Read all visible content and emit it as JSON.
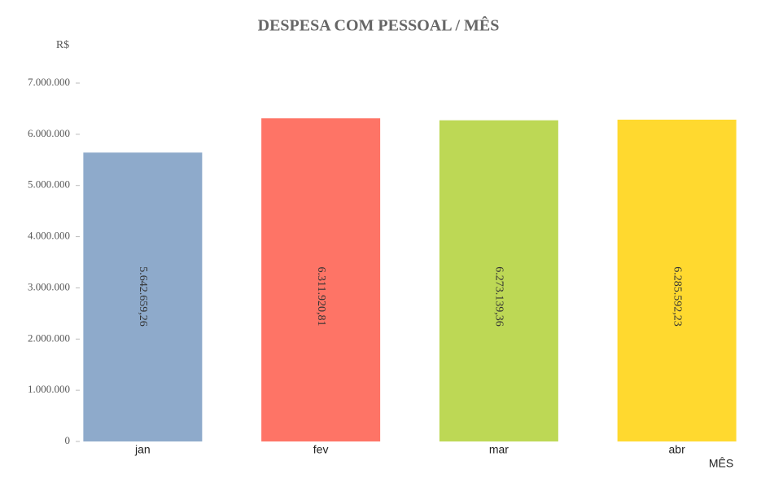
{
  "chart_data": {
    "type": "bar",
    "title": "DESPESA COM PESSOAL / MÊS",
    "y_label": "R$",
    "x_label": "MÊS",
    "categories": [
      "jan",
      "fev",
      "mar",
      "abr"
    ],
    "values": [
      5642659.26,
      6311920.81,
      6273139.36,
      6285592.23
    ],
    "value_labels": [
      "5.642.659,26",
      "6.311.920,81",
      "6.273.139,36",
      "6.285.592,23"
    ],
    "colors": [
      "#8eaacb",
      "#fe7466",
      "#bdd855",
      "#ffd92f"
    ],
    "ylim": [
      0,
      7000000
    ],
    "yticks": [
      0,
      {
        "value": 1000000,
        "label": "1.000.000"
      },
      {
        "value": 2000000,
        "label": "2.000.000"
      },
      {
        "value": 3000000,
        "label": "3.000.000"
      },
      {
        "value": 4000000,
        "label": "4.000.000"
      },
      {
        "value": 5000000,
        "label": "5.000.000"
      },
      {
        "value": 6000000,
        "label": "6.000.000"
      },
      {
        "value": 7000000,
        "label": "7.000.000"
      }
    ],
    "grid": false
  }
}
